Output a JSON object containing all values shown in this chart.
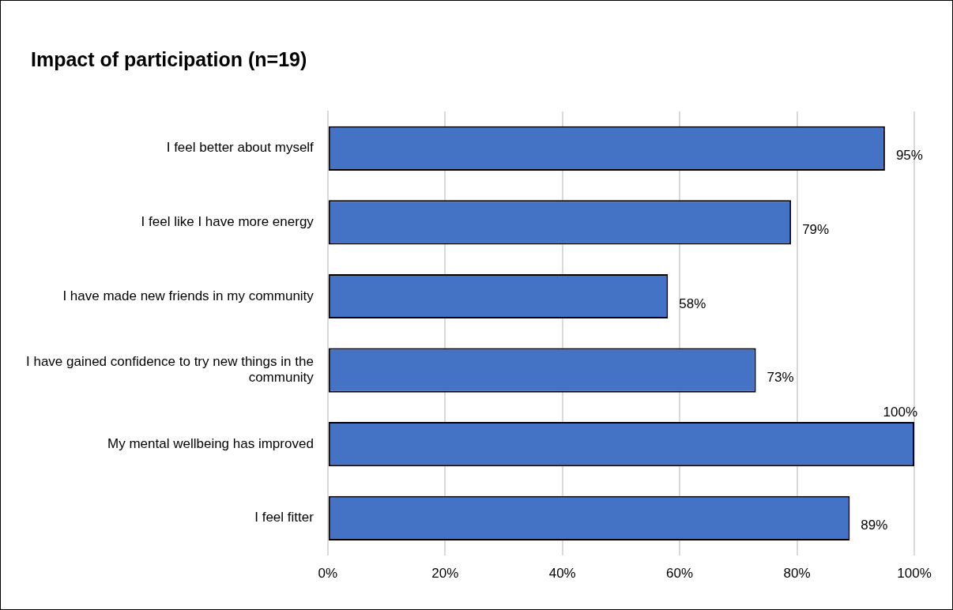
{
  "chart_data": {
    "type": "bar",
    "orientation": "horizontal",
    "title": "Impact of participation (n=19)",
    "categories": [
      "I feel better about myself",
      "I feel like I have more energy",
      "I have made new friends in my community",
      "I have gained confidence to try new things in the community",
      "My mental wellbeing has improved",
      "I feel fitter"
    ],
    "values": [
      95,
      79,
      58,
      73,
      100,
      89
    ],
    "value_labels": [
      "95%",
      "79%",
      "58%",
      "73%",
      "100%",
      "89%"
    ],
    "color": "#4472c4",
    "xlim": [
      0,
      100
    ],
    "xticks": [
      {
        "value": 0,
        "label": "0%"
      },
      {
        "value": 20,
        "label": "20%"
      },
      {
        "value": 40,
        "label": "40%"
      },
      {
        "value": 60,
        "label": "60%"
      },
      {
        "value": 80,
        "label": "80%"
      },
      {
        "value": 100,
        "label": "100%"
      }
    ],
    "grid": "x",
    "legend": false
  }
}
